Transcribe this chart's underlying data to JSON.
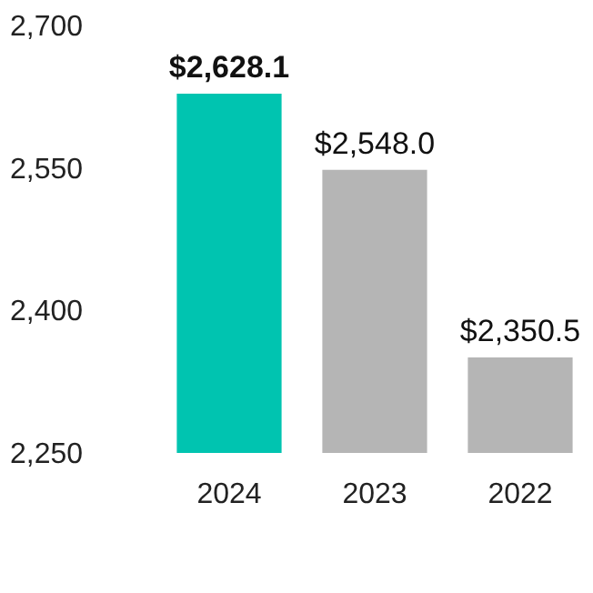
{
  "chart_data": {
    "type": "bar",
    "categories": [
      "2024",
      "2023",
      "2022"
    ],
    "values": [
      2628.1,
      2548.0,
      2350.5
    ],
    "colors": [
      "#00c4b0",
      "#b5b5b5",
      "#b5b5b5"
    ],
    "value_labels": [
      "$2,628.1",
      "$2,548.0",
      "$2,350.5"
    ],
    "ylim": [
      2250,
      2700
    ],
    "yticks": [
      {
        "value": 2250,
        "label": "2,250"
      },
      {
        "value": 2400,
        "label": "2,400"
      },
      {
        "value": 2550,
        "label": "2,550"
      },
      {
        "value": 2700,
        "label": "2,700"
      }
    ],
    "grid": false
  }
}
